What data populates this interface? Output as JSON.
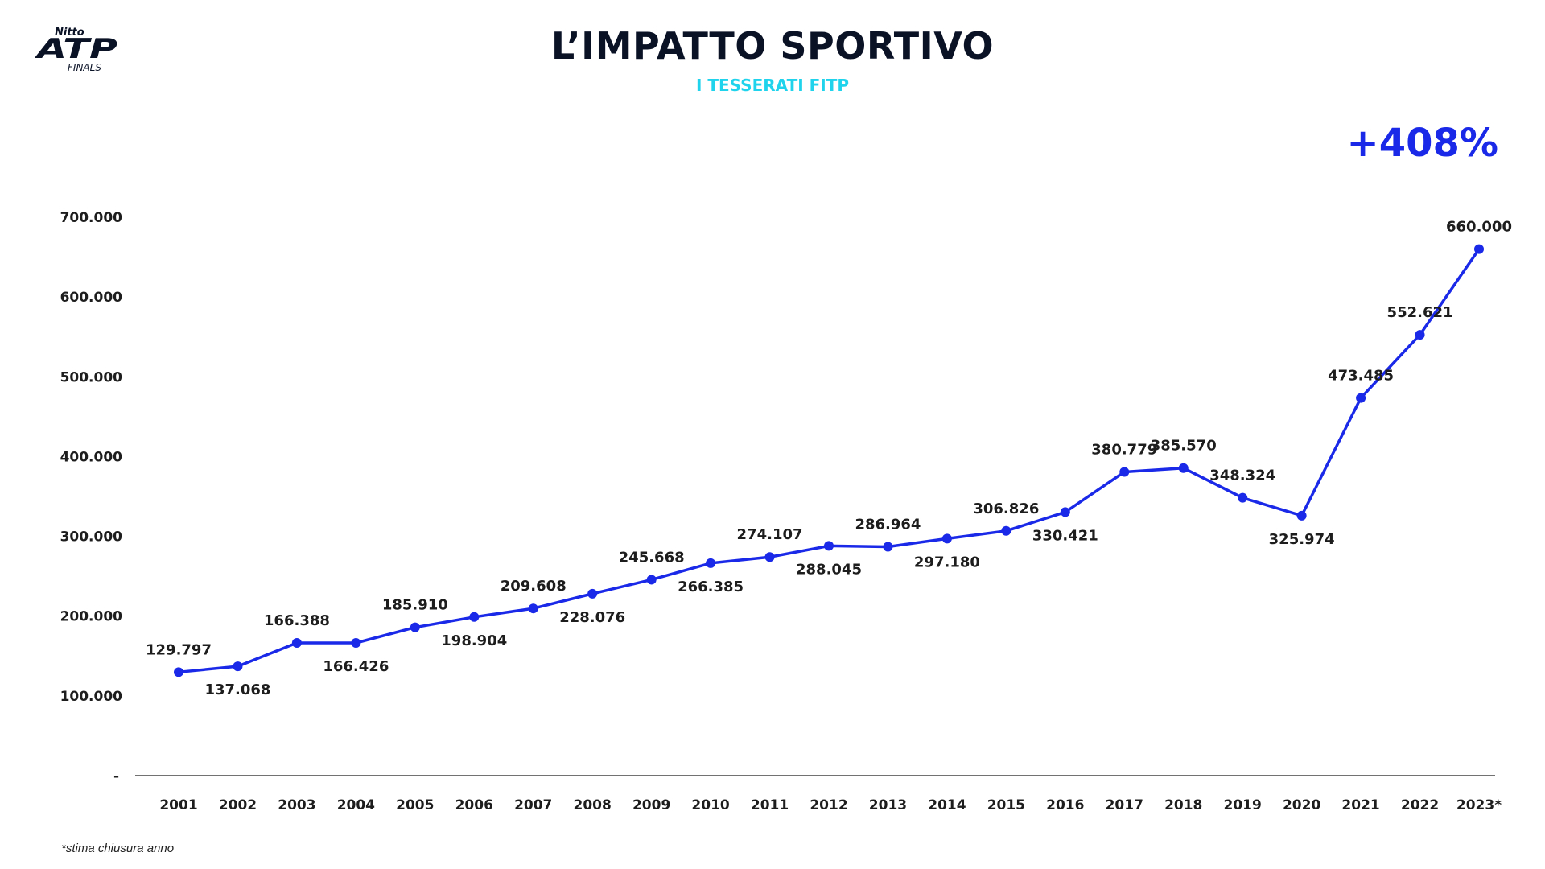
{
  "header": {
    "logo_text": [
      "Nitto",
      "ATP",
      "FINALS"
    ],
    "title": "L’IMPATTO SPORTIVO",
    "subtitle": "I TESSERATI FITP",
    "growth": "+408%"
  },
  "footnote": "*stima chiusura anno",
  "colors": {
    "line": "#1a29e8",
    "title": "#0a1226",
    "subtitle": "#1fd3ec",
    "axis": "#444444"
  },
  "chart_data": {
    "type": "line",
    "title": "I TESSERATI FITP",
    "categories": [
      "2001",
      "2002",
      "2003",
      "2004",
      "2005",
      "2006",
      "2007",
      "2008",
      "2009",
      "2010",
      "2011",
      "2012",
      "2013",
      "2014",
      "2015",
      "2016",
      "2017",
      "2018",
      "2019",
      "2020",
      "2021",
      "2022",
      "2023*"
    ],
    "series": [
      {
        "values": [
          129797,
          137068,
          166388,
          166426,
          185910,
          198904,
          209608,
          228076,
          245668,
          266385,
          274107,
          288045,
          286964,
          297180,
          306826,
          330421,
          380779,
          385570,
          348324,
          325974,
          473485,
          552621,
          660000
        ],
        "labels": [
          "129.797",
          "137.068",
          "166.388",
          "166.426",
          "185.910",
          "198.904",
          "209.608",
          "228.076",
          "245.668",
          "266.385",
          "274.107",
          "288.045",
          "286.964",
          "297.180",
          "306.826",
          "330.421",
          "380.779",
          "385.570",
          "348.324",
          "325.974",
          "473.485",
          "552.621",
          "660.000"
        ],
        "label_positions": [
          "above",
          "below",
          "above",
          "below",
          "above",
          "below",
          "above",
          "below",
          "above",
          "below",
          "above",
          "below",
          "above",
          "below",
          "above",
          "below",
          "above",
          "above",
          "above",
          "below",
          "above",
          "above",
          "above"
        ]
      }
    ],
    "y_ticks": [
      0,
      100000,
      200000,
      300000,
      400000,
      500000,
      600000,
      700000
    ],
    "y_tick_labels": [
      "-",
      "100.000",
      "200.000",
      "300.000",
      "400.000",
      "500.000",
      "600.000",
      "700.000"
    ],
    "ylim": [
      0,
      700000
    ],
    "grid": false,
    "legend": "none",
    "xlabel": "",
    "ylabel": ""
  }
}
